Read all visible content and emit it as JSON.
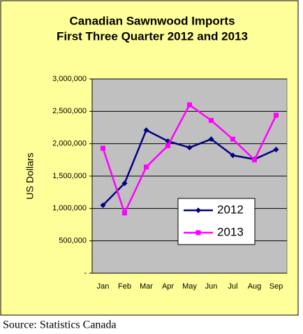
{
  "chart_data": {
    "type": "line",
    "title": [
      "Canadian Sawnwood Imports",
      "First Three Quarter 2012 and 2013"
    ],
    "ylabel": "US Dollars",
    "categories": [
      "Jan",
      "Feb",
      "Mar",
      "Apr",
      "May",
      "Jun",
      "Jul",
      "Aug",
      "Sep"
    ],
    "series": [
      {
        "name": "2012",
        "color": "#000080",
        "marker": "diamond",
        "values": [
          1050000,
          1390000,
          2210000,
          2040000,
          1940000,
          2070000,
          1820000,
          1760000,
          1910000
        ]
      },
      {
        "name": "2013",
        "color": "#ff00ff",
        "marker": "square",
        "values": [
          1930000,
          930000,
          1640000,
          1970000,
          2600000,
          2360000,
          2070000,
          1750000,
          2440000
        ]
      }
    ],
    "ylim": [
      0,
      3000000
    ],
    "yticks": [
      {
        "value": 0,
        "label": "-"
      },
      {
        "value": 500000,
        "label": "500,000"
      },
      {
        "value": 1000000,
        "label": "1,000,000"
      },
      {
        "value": 1500000,
        "label": "1,500,000"
      },
      {
        "value": 2000000,
        "label": "2,000,000"
      },
      {
        "value": 2500000,
        "label": "2,500,000"
      },
      {
        "value": 3000000,
        "label": "3,000,000"
      }
    ],
    "grid": true,
    "legend": "center-right",
    "source": "Source: Statistics Canada"
  }
}
